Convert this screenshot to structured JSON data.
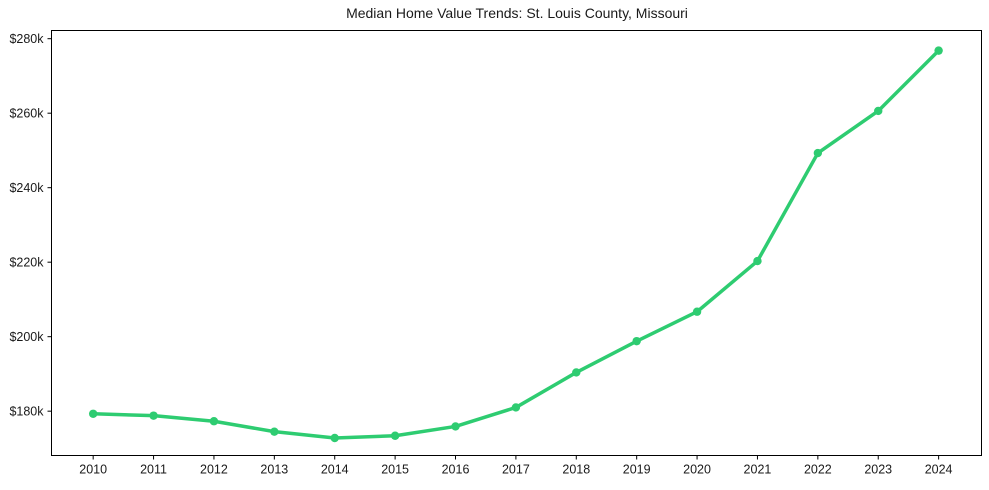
{
  "figure": {
    "background_color": "#ffffff",
    "frame_color": "#000000",
    "text_color": "#1a1a1a"
  },
  "chart_data": {
    "type": "line",
    "title": "Median Home Value Trends: St. Louis County, Missouri",
    "xlabel": "",
    "ylabel": "",
    "x": [
      2010,
      2011,
      2012,
      2013,
      2014,
      2015,
      2016,
      2017,
      2018,
      2019,
      2020,
      2021,
      2022,
      2023,
      2024
    ],
    "values": [
      179300,
      178800,
      177300,
      174500,
      172800,
      173400,
      175900,
      181000,
      190400,
      198800,
      206700,
      220300,
      249300,
      260600,
      276800
    ],
    "line_color": "#2ecc71",
    "marker": "circle",
    "marker_color": "#2ecc71",
    "grid": false,
    "legend": false,
    "xlim": [
      2009.31,
      2024.71
    ],
    "ylim": [
      168100,
      282200
    ],
    "yticks": {
      "values": [
        180000,
        200000,
        220000,
        240000,
        260000,
        280000
      ],
      "labels": [
        "$180k",
        "$200k",
        "$220k",
        "$240k",
        "$260k",
        "$280k"
      ]
    },
    "xtick_labels": [
      "2010",
      "2011",
      "2012",
      "2013",
      "2014",
      "2015",
      "2016",
      "2017",
      "2018",
      "2019",
      "2020",
      "2021",
      "2022",
      "2023",
      "2024"
    ]
  }
}
